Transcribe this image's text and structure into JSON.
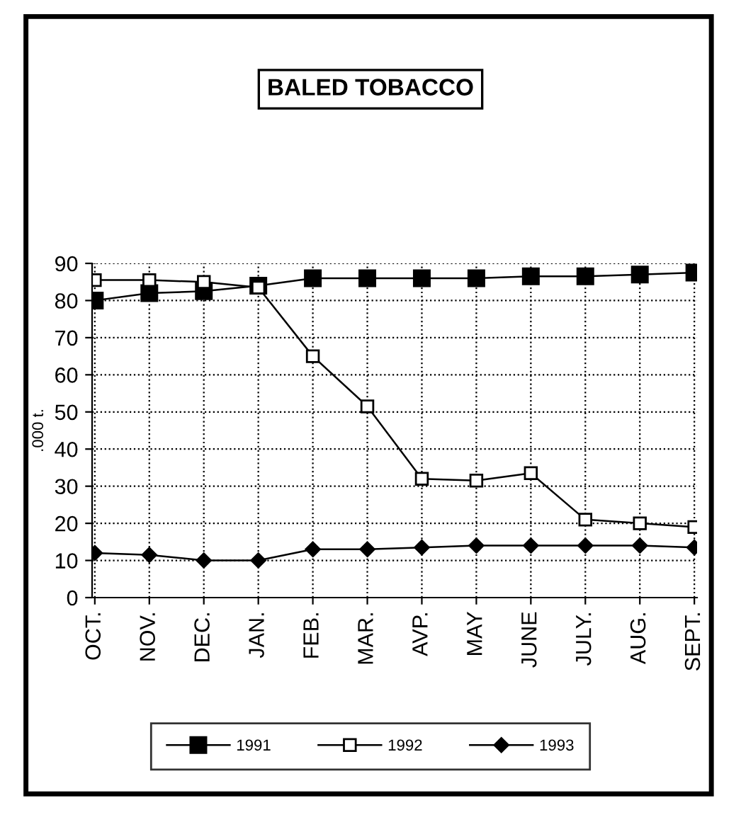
{
  "chart_data": {
    "type": "line",
    "title": "BALED TOBACCO",
    "ylabel": ".000 t.",
    "categories": [
      "OCT.",
      "NOV.",
      "DEC.",
      "JAN.",
      "FEB.",
      "MAR.",
      "AVP.",
      "MAY",
      "JUNE",
      "JULY.",
      "AUG.",
      "SEPT."
    ],
    "series": [
      {
        "name": "1991",
        "color": "#000000",
        "marker": "square",
        "values": [
          80,
          82,
          82.5,
          84,
          86,
          86,
          86,
          86,
          86.5,
          86.5,
          87,
          87.5
        ]
      },
      {
        "name": "1992",
        "color": "#000000",
        "marker": "square",
        "values": [
          85.5,
          85.5,
          85,
          83.5,
          65,
          51.5,
          32,
          31.5,
          33.5,
          21,
          20,
          19
        ]
      },
      {
        "name": "1993",
        "color": "#000000",
        "marker": "diamond",
        "values": [
          12,
          11.5,
          10,
          10,
          13,
          13,
          13.5,
          14,
          14,
          14,
          14,
          13.5
        ]
      }
    ],
    "ylim": [
      0,
      90
    ],
    "yticks": [
      0,
      10,
      20,
      30,
      40,
      50,
      60,
      70,
      80,
      90
    ],
    "grid": true,
    "legend": "bottom",
    "line_style": "solid"
  }
}
